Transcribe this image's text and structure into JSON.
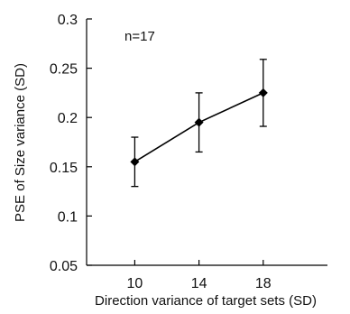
{
  "chart_data": {
    "type": "line",
    "xlabel": "Direction variance of target sets (SD)",
    "ylabel": "PSE of Size variance (SD)",
    "annotation": "n=17",
    "xlim": [
      7,
      22
    ],
    "ylim": [
      0.05,
      0.3
    ],
    "x_ticks": [
      10,
      14,
      18
    ],
    "y_ticks": [
      0.05,
      0.1,
      0.15,
      0.2,
      0.25,
      0.3
    ],
    "y_tick_labels": [
      "0.05",
      "0.1",
      "0.15",
      "0.2",
      "0.25",
      "0.3"
    ],
    "grid": false,
    "series": [
      {
        "x": [
          10,
          14,
          18
        ],
        "values": [
          0.155,
          0.195,
          0.225
        ],
        "error": [
          0.025,
          0.03,
          0.034
        ],
        "marker": "diamond",
        "color": "#000000"
      }
    ]
  }
}
